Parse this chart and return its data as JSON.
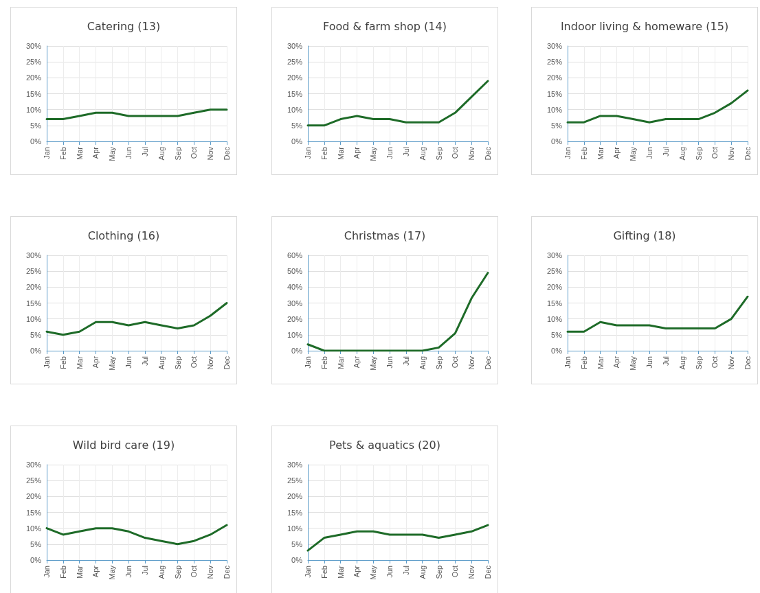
{
  "chart_data": [
    {
      "type": "line",
      "title": "Catering (13)",
      "categories": [
        "Jan",
        "Feb",
        "Mar",
        "Apr",
        "May",
        "Jun",
        "Jul",
        "Aug",
        "Sep",
        "Oct",
        "Nov",
        "Dec"
      ],
      "series": [
        {
          "color": "#1e6b28",
          "values": [
            7,
            7,
            8,
            9,
            9,
            8,
            8,
            8,
            8,
            9,
            10,
            10
          ]
        }
      ],
      "ylim": [
        0,
        30
      ],
      "yticks": [
        {
          "value": 0,
          "label": "0%"
        },
        {
          "value": 5,
          "label": "5%"
        },
        {
          "value": 10,
          "label": "10%"
        },
        {
          "value": 15,
          "label": "15%"
        },
        {
          "value": 20,
          "label": "20%"
        },
        {
          "value": 25,
          "label": "25%"
        },
        {
          "value": 30,
          "label": "30%"
        }
      ],
      "grid": true,
      "marker": "none"
    },
    {
      "type": "line",
      "title": "Food & farm shop (14)",
      "categories": [
        "Jan",
        "Feb",
        "Mar",
        "Apr",
        "May",
        "Jun",
        "Jul",
        "Aug",
        "Sep",
        "Oct",
        "Nov",
        "Dec"
      ],
      "series": [
        {
          "color": "#1e6b28",
          "values": [
            5,
            5,
            7,
            8,
            7,
            7,
            6,
            6,
            6,
            9,
            14,
            19
          ]
        }
      ],
      "ylim": [
        0,
        30
      ],
      "yticks": [
        {
          "value": 0,
          "label": "0%"
        },
        {
          "value": 5,
          "label": "5%"
        },
        {
          "value": 10,
          "label": "10%"
        },
        {
          "value": 15,
          "label": "15%"
        },
        {
          "value": 20,
          "label": "20%"
        },
        {
          "value": 25,
          "label": "25%"
        },
        {
          "value": 30,
          "label": "30%"
        }
      ],
      "grid": true,
      "marker": "none"
    },
    {
      "type": "line",
      "title": "Indoor living & homeware (15)",
      "categories": [
        "Jan",
        "Feb",
        "Mar",
        "Apr",
        "May",
        "Jun",
        "Jul",
        "Aug",
        "Sep",
        "Oct",
        "Nov",
        "Dec"
      ],
      "series": [
        {
          "color": "#1e6b28",
          "values": [
            6,
            6,
            8,
            8,
            7,
            6,
            7,
            7,
            7,
            9,
            12,
            16
          ]
        }
      ],
      "ylim": [
        0,
        30
      ],
      "yticks": [
        {
          "value": 0,
          "label": "0%"
        },
        {
          "value": 5,
          "label": "5%"
        },
        {
          "value": 10,
          "label": "10%"
        },
        {
          "value": 15,
          "label": "15%"
        },
        {
          "value": 20,
          "label": "20%"
        },
        {
          "value": 25,
          "label": "25%"
        },
        {
          "value": 30,
          "label": "30%"
        }
      ],
      "grid": true,
      "marker": "none"
    },
    {
      "type": "line",
      "title": "Clothing (16)",
      "categories": [
        "Jan",
        "Feb",
        "Mar",
        "Apr",
        "May",
        "Jun",
        "Jul",
        "Aug",
        "Sep",
        "Oct",
        "Nov",
        "Dec"
      ],
      "series": [
        {
          "color": "#1e6b28",
          "values": [
            6,
            5,
            6,
            9,
            9,
            8,
            9,
            8,
            7,
            8,
            11,
            15
          ]
        }
      ],
      "ylim": [
        0,
        30
      ],
      "yticks": [
        {
          "value": 0,
          "label": "0%"
        },
        {
          "value": 5,
          "label": "5%"
        },
        {
          "value": 10,
          "label": "10%"
        },
        {
          "value": 15,
          "label": "15%"
        },
        {
          "value": 20,
          "label": "20%"
        },
        {
          "value": 25,
          "label": "25%"
        },
        {
          "value": 30,
          "label": "30%"
        }
      ],
      "grid": true,
      "marker": "none"
    },
    {
      "type": "line",
      "title": "Christmas (17)",
      "categories": [
        "Jan",
        "Feb",
        "Mar",
        "Apr",
        "May",
        "Jun",
        "Jul",
        "Aug",
        "Sep",
        "Oct",
        "Nov",
        "Dec"
      ],
      "series": [
        {
          "color": "#1e6b28",
          "values": [
            4,
            0,
            0,
            0,
            0,
            0,
            0,
            0,
            2,
            11,
            33,
            49
          ]
        }
      ],
      "ylim": [
        0,
        60
      ],
      "yticks": [
        {
          "value": 0,
          "label": "0%"
        },
        {
          "value": 10,
          "label": "10%"
        },
        {
          "value": 20,
          "label": "20%"
        },
        {
          "value": 30,
          "label": "30%"
        },
        {
          "value": 40,
          "label": "40%"
        },
        {
          "value": 50,
          "label": "50%"
        },
        {
          "value": 60,
          "label": "60%"
        }
      ],
      "grid": true,
      "marker": "none"
    },
    {
      "type": "line",
      "title": "Gifting (18)",
      "categories": [
        "Jan",
        "Feb",
        "Mar",
        "Apr",
        "May",
        "Jun",
        "Jul",
        "Aug",
        "Sep",
        "Oct",
        "Nov",
        "Dec"
      ],
      "series": [
        {
          "color": "#1e6b28",
          "values": [
            6,
            6,
            9,
            8,
            8,
            8,
            7,
            7,
            7,
            7,
            10,
            17
          ]
        }
      ],
      "ylim": [
        0,
        30
      ],
      "yticks": [
        {
          "value": 0,
          "label": "0%"
        },
        {
          "value": 5,
          "label": "5%"
        },
        {
          "value": 10,
          "label": "10%"
        },
        {
          "value": 15,
          "label": "15%"
        },
        {
          "value": 20,
          "label": "20%"
        },
        {
          "value": 25,
          "label": "25%"
        },
        {
          "value": 30,
          "label": "30%"
        }
      ],
      "grid": true,
      "marker": "none"
    },
    {
      "type": "line",
      "title": "Wild bird care (19)",
      "categories": [
        "Jan",
        "Feb",
        "Mar",
        "Apr",
        "May",
        "Jun",
        "Jul",
        "Aug",
        "Sep",
        "Oct",
        "Nov",
        "Dec"
      ],
      "series": [
        {
          "color": "#1e6b28",
          "values": [
            10,
            8,
            9,
            10,
            10,
            9,
            7,
            6,
            5,
            6,
            8,
            11
          ]
        }
      ],
      "ylim": [
        0,
        30
      ],
      "yticks": [
        {
          "value": 0,
          "label": "0%"
        },
        {
          "value": 5,
          "label": "5%"
        },
        {
          "value": 10,
          "label": "10%"
        },
        {
          "value": 15,
          "label": "15%"
        },
        {
          "value": 20,
          "label": "20%"
        },
        {
          "value": 25,
          "label": "25%"
        },
        {
          "value": 30,
          "label": "30%"
        }
      ],
      "grid": true,
      "marker": "none"
    },
    {
      "type": "line",
      "title": "Pets & aquatics (20)",
      "categories": [
        "Jan",
        "Feb",
        "Mar",
        "Apr",
        "May",
        "Jun",
        "Jul",
        "Aug",
        "Sep",
        "Oct",
        "Nov",
        "Dec"
      ],
      "series": [
        {
          "color": "#1e6b28",
          "values": [
            3,
            7,
            8,
            9,
            9,
            8,
            8,
            8,
            7,
            8,
            9,
            11
          ]
        }
      ],
      "ylim": [
        0,
        30
      ],
      "yticks": [
        {
          "value": 0,
          "label": "0%"
        },
        {
          "value": 5,
          "label": "5%"
        },
        {
          "value": 10,
          "label": "10%"
        },
        {
          "value": 15,
          "label": "15%"
        },
        {
          "value": 20,
          "label": "20%"
        },
        {
          "value": 25,
          "label": "25%"
        },
        {
          "value": 30,
          "label": "30%"
        }
      ],
      "grid": true,
      "marker": "none"
    }
  ]
}
